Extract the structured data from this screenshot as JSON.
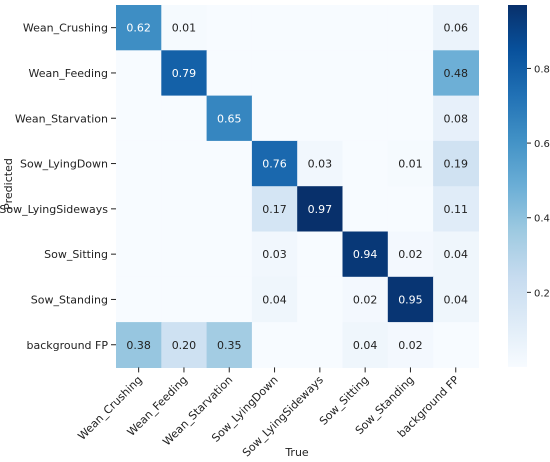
{
  "chart_data": {
    "type": "heatmap",
    "title": "",
    "xlabel": "True",
    "ylabel": "Predicted",
    "x_categories": [
      "Wean_Crushing",
      "Wean_Feeding",
      "Wean_Starvation",
      "Sow_LyingDown",
      "Sow_LyingSideways",
      "Sow_Sitting",
      "Sow_Standing",
      "background FP"
    ],
    "y_categories": [
      "Wean_Crushing",
      "Wean_Feeding",
      "Wean_Starvation",
      "Sow_LyingDown",
      "Sow_LyingSideways",
      "Sow_Sitting",
      "Sow_Standing",
      "background FP"
    ],
    "values": [
      [
        0.62,
        0.01,
        null,
        null,
        null,
        null,
        null,
        0.06
      ],
      [
        null,
        0.79,
        null,
        null,
        null,
        null,
        null,
        0.48
      ],
      [
        null,
        null,
        0.65,
        null,
        null,
        null,
        null,
        0.08
      ],
      [
        null,
        null,
        null,
        0.76,
        0.03,
        null,
        0.01,
        0.19
      ],
      [
        null,
        null,
        null,
        0.17,
        0.97,
        null,
        null,
        0.11
      ],
      [
        null,
        null,
        null,
        0.03,
        null,
        0.94,
        0.02,
        0.04
      ],
      [
        null,
        null,
        null,
        0.04,
        null,
        0.02,
        0.95,
        0.04
      ],
      [
        0.38,
        0.2,
        0.35,
        null,
        null,
        0.04,
        0.02,
        null
      ]
    ],
    "colorbar": {
      "range": [
        0,
        0.97
      ],
      "ticks": [
        "0.2",
        "0.4",
        "0.6",
        "0.8"
      ],
      "tick_values": [
        0.2,
        0.4,
        0.6,
        0.8
      ]
    },
    "colormap": "Blues",
    "colors": [
      "#f7fbff",
      "#deebf7",
      "#c6dbef",
      "#9ecae1",
      "#6baed6",
      "#4292c6",
      "#2171b5",
      "#08519c",
      "#08306b"
    ],
    "value_format": "2 decimals"
  }
}
